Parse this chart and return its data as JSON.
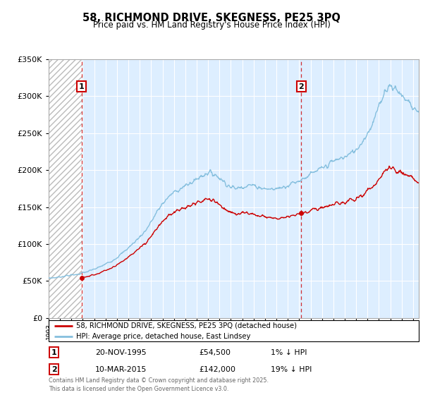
{
  "title": "58, RICHMOND DRIVE, SKEGNESS, PE25 3PQ",
  "subtitle": "Price paid vs. HM Land Registry's House Price Index (HPI)",
  "legend_line1": "58, RICHMOND DRIVE, SKEGNESS, PE25 3PQ (detached house)",
  "legend_line2": "HPI: Average price, detached house, East Lindsey",
  "annotation1_label": "1",
  "annotation1_date": "20-NOV-1995",
  "annotation1_price": "£54,500",
  "annotation1_hpi": "1% ↓ HPI",
  "annotation2_label": "2",
  "annotation2_date": "10-MAR-2015",
  "annotation2_price": "£142,000",
  "annotation2_hpi": "19% ↓ HPI",
  "footer": "Contains HM Land Registry data © Crown copyright and database right 2025.\nThis data is licensed under the Open Government Licence v3.0.",
  "sale1_year": 1995.89,
  "sale1_price": 54500,
  "sale2_year": 2015.19,
  "sale2_price": 142000,
  "hpi_color": "#85bfde",
  "price_color": "#cc0000",
  "annotation_color": "#cc0000",
  "bg_fill_color": "#ddeeff",
  "hatch_color": "#bbbbbb",
  "ylim_max": 350000,
  "ylim_min": 0,
  "xmin": 1993,
  "xmax": 2025.5
}
